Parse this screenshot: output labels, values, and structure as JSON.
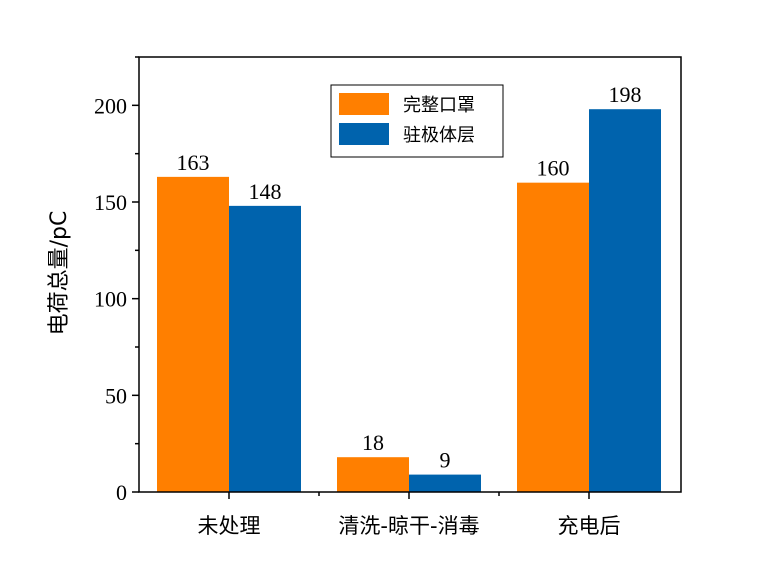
{
  "chart_data": {
    "type": "bar",
    "title": "",
    "xlabel": "",
    "ylabel": "电荷总量/pC",
    "categories": [
      "未处理",
      "清洗-晾干-消毒",
      "充电后"
    ],
    "series": [
      {
        "name": "完整口罩",
        "values": [
          163,
          18,
          160
        ],
        "color": "#FF7F00"
      },
      {
        "name": "驻极体层",
        "values": [
          148,
          9,
          198
        ],
        "color": "#0063AD"
      }
    ],
    "ylim": [
      0,
      225
    ],
    "yticks": [
      0,
      50,
      100,
      150,
      200
    ],
    "grid": false,
    "legend_position": "top-center"
  }
}
